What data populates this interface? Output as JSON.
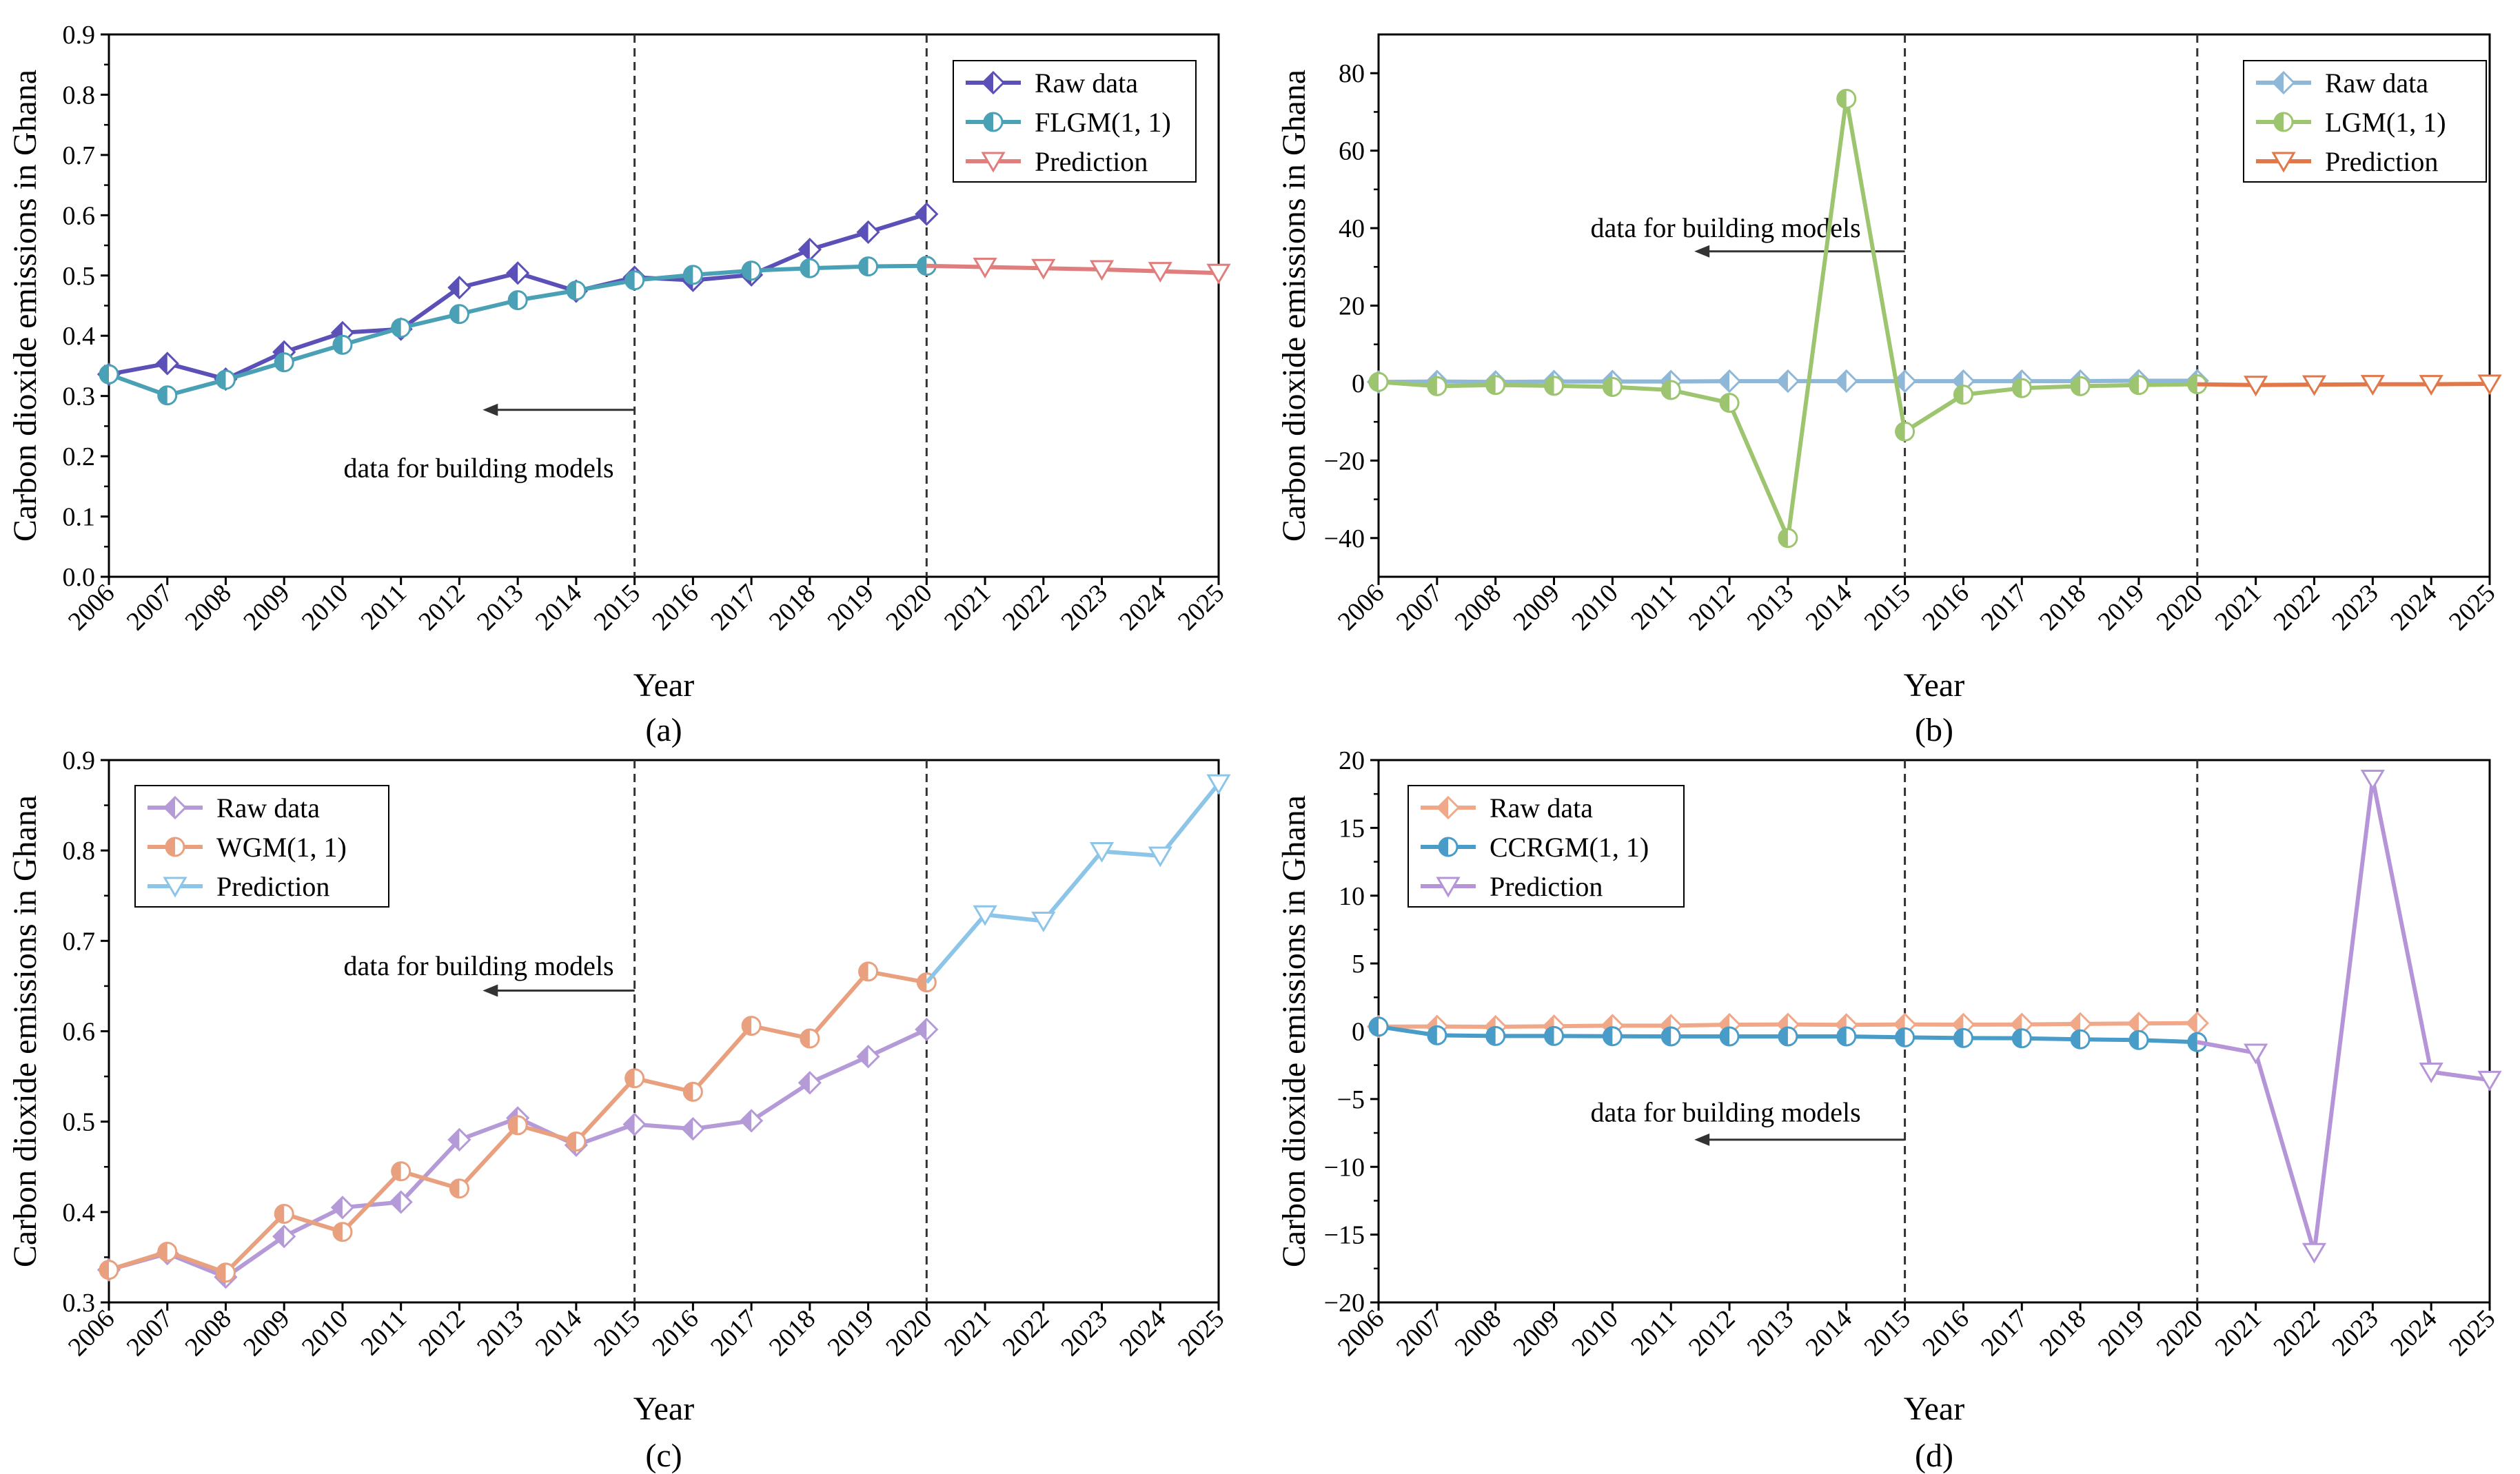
{
  "figure": {
    "panels_count": 4
  },
  "chart_data": [
    {
      "id": "a",
      "type": "line",
      "caption": "(a)",
      "xlabel": "Year",
      "ylabel": "Carbon dioxide emissions in Ghana",
      "xlim": [
        2006,
        2025
      ],
      "ylim": [
        0,
        0.9
      ],
      "x_ticks": [
        2006,
        2007,
        2008,
        2009,
        2010,
        2011,
        2012,
        2013,
        2014,
        2015,
        2016,
        2017,
        2018,
        2019,
        2020,
        2021,
        2022,
        2023,
        2024,
        2025
      ],
      "y_ticks": [
        0.0,
        0.1,
        0.2,
        0.3,
        0.4,
        0.5,
        0.6,
        0.7,
        0.8,
        0.9
      ],
      "y_tick_labels": [
        "0.0",
        "0.1",
        "0.2",
        "0.3",
        "0.4",
        "0.5",
        "0.6",
        "0.7",
        "0.8",
        "0.9"
      ],
      "vlines": [
        2015,
        2020
      ],
      "annotation": {
        "text": "data for building models",
        "arrow_from_x": 2015,
        "arrow_to_x": 2012.4,
        "arrow_y": 0.277,
        "text_y": 0.18,
        "text_x_end": 2015
      },
      "legend": {
        "position": "top-right"
      },
      "series": [
        {
          "name": "Raw data",
          "color": "#5b50b7",
          "marker": "diamond",
          "x": [
            2006,
            2007,
            2008,
            2009,
            2010,
            2011,
            2012,
            2013,
            2014,
            2015,
            2016,
            2017,
            2018,
            2019,
            2020
          ],
          "values": [
            0.336,
            0.354,
            0.328,
            0.373,
            0.405,
            0.411,
            0.48,
            0.504,
            0.474,
            0.497,
            0.492,
            0.501,
            0.543,
            0.572,
            0.602
          ]
        },
        {
          "name": "FLGM(1, 1)",
          "color": "#4aa1b6",
          "marker": "circle",
          "x": [
            2006,
            2007,
            2008,
            2009,
            2010,
            2011,
            2012,
            2013,
            2014,
            2015,
            2016,
            2017,
            2018,
            2019,
            2020
          ],
          "values": [
            0.336,
            0.301,
            0.327,
            0.356,
            0.385,
            0.413,
            0.436,
            0.459,
            0.475,
            0.492,
            0.501,
            0.508,
            0.512,
            0.515,
            0.516
          ]
        },
        {
          "name": "Prediction",
          "color": "#e07e7e",
          "marker": "triangle-down",
          "x": [
            2020,
            2021,
            2022,
            2023,
            2024,
            2025
          ],
          "values": [
            0.516,
            0.514,
            0.512,
            0.51,
            0.507,
            0.504
          ]
        }
      ]
    },
    {
      "id": "b",
      "type": "line",
      "caption": "(b)",
      "xlabel": "Year",
      "ylabel": "Carbon dioxide emissions in Ghana",
      "xlim": [
        2006,
        2025
      ],
      "ylim": [
        -50,
        90
      ],
      "x_ticks": [
        2006,
        2007,
        2008,
        2009,
        2010,
        2011,
        2012,
        2013,
        2014,
        2015,
        2016,
        2017,
        2018,
        2019,
        2020,
        2021,
        2022,
        2023,
        2024,
        2025
      ],
      "y_ticks": [
        -40,
        -20,
        0,
        20,
        40,
        60,
        80
      ],
      "y_tick_labels": [
        "−40",
        "−20",
        "0",
        "20",
        "40",
        "60",
        "80"
      ],
      "vlines": [
        2015,
        2020
      ],
      "annotation": {
        "text": "data for building models",
        "arrow_from_x": 2015,
        "arrow_to_x": 2011.4,
        "arrow_y": 34,
        "text_y": 40,
        "text_x_end": 2014.6
      },
      "legend": {
        "position": "top-right"
      },
      "series": [
        {
          "name": "Raw data",
          "color": "#8fb8d8",
          "marker": "diamond",
          "x": [
            2006,
            2007,
            2008,
            2009,
            2010,
            2011,
            2012,
            2013,
            2014,
            2015,
            2016,
            2017,
            2018,
            2019,
            2020
          ],
          "values": [
            0.3,
            0.4,
            0.3,
            0.4,
            0.4,
            0.4,
            0.5,
            0.5,
            0.5,
            0.5,
            0.5,
            0.5,
            0.5,
            0.6,
            0.6
          ]
        },
        {
          "name": "LGM(1, 1)",
          "color": "#9dc46f",
          "marker": "circle",
          "x": [
            2006,
            2007,
            2008,
            2009,
            2010,
            2011,
            2012,
            2013,
            2014,
            2015,
            2016,
            2017,
            2018,
            2019,
            2020
          ],
          "values": [
            0.3,
            -0.8,
            -0.5,
            -0.7,
            -1.0,
            -1.8,
            -5.1,
            -40.0,
            73.4,
            -12.5,
            -3.0,
            -1.3,
            -0.8,
            -0.5,
            -0.3
          ]
        },
        {
          "name": "Prediction",
          "color": "#e0784a",
          "marker": "triangle-down",
          "x": [
            2020,
            2021,
            2022,
            2023,
            2024,
            2025
          ],
          "values": [
            -0.3,
            -0.5,
            -0.4,
            -0.3,
            -0.3,
            -0.2
          ]
        }
      ]
    },
    {
      "id": "c",
      "type": "line",
      "caption": "(c)",
      "xlabel": "Year",
      "ylabel": "Carbon dioxide emissions in Ghana",
      "xlim": [
        2006,
        2025
      ],
      "ylim": [
        0.3,
        0.9
      ],
      "x_ticks": [
        2006,
        2007,
        2008,
        2009,
        2010,
        2011,
        2012,
        2013,
        2014,
        2015,
        2016,
        2017,
        2018,
        2019,
        2020,
        2021,
        2022,
        2023,
        2024,
        2025
      ],
      "y_ticks": [
        0.3,
        0.4,
        0.5,
        0.6,
        0.7,
        0.8,
        0.9
      ],
      "y_tick_labels": [
        "0.3",
        "0.4",
        "0.5",
        "0.6",
        "0.7",
        "0.8",
        "0.9"
      ],
      "vlines": [
        2015,
        2020
      ],
      "annotation": {
        "text": "data for building models",
        "arrow_from_x": 2015,
        "arrow_to_x": 2012.4,
        "arrow_y": 0.645,
        "text_y": 0.672,
        "text_x_end": 2015
      },
      "legend": {
        "position": "top-left"
      },
      "series": [
        {
          "name": "Raw data",
          "color": "#b59ad8",
          "marker": "diamond",
          "x": [
            2006,
            2007,
            2008,
            2009,
            2010,
            2011,
            2012,
            2013,
            2014,
            2015,
            2016,
            2017,
            2018,
            2019,
            2020
          ],
          "values": [
            0.336,
            0.354,
            0.328,
            0.373,
            0.405,
            0.411,
            0.48,
            0.504,
            0.474,
            0.497,
            0.492,
            0.501,
            0.543,
            0.572,
            0.602
          ]
        },
        {
          "name": "WGM(1, 1)",
          "color": "#e9a07e",
          "marker": "circle",
          "x": [
            2006,
            2007,
            2008,
            2009,
            2010,
            2011,
            2012,
            2013,
            2014,
            2015,
            2016,
            2017,
            2018,
            2019,
            2020
          ],
          "values": [
            0.336,
            0.356,
            0.333,
            0.398,
            0.378,
            0.445,
            0.426,
            0.496,
            0.478,
            0.548,
            0.533,
            0.606,
            0.592,
            0.666,
            0.654
          ]
        },
        {
          "name": "Prediction",
          "color": "#8cc5e8",
          "marker": "triangle-down",
          "x": [
            2020,
            2021,
            2022,
            2023,
            2024,
            2025
          ],
          "values": [
            0.654,
            0.729,
            0.722,
            0.799,
            0.794,
            0.874
          ]
        }
      ]
    },
    {
      "id": "d",
      "type": "line",
      "caption": "(d)",
      "xlabel": "Year",
      "ylabel": "Carbon dioxide emissions in Ghana",
      "xlim": [
        2006,
        2025
      ],
      "ylim": [
        -20,
        20
      ],
      "x_ticks": [
        2006,
        2007,
        2008,
        2009,
        2010,
        2011,
        2012,
        2013,
        2014,
        2015,
        2016,
        2017,
        2018,
        2019,
        2020,
        2021,
        2022,
        2023,
        2024,
        2025
      ],
      "y_ticks": [
        -20,
        -15,
        -10,
        -5,
        0,
        5,
        10,
        15,
        20
      ],
      "y_tick_labels": [
        "−20",
        "−15",
        "−10",
        "−5",
        "0",
        "5",
        "10",
        "15",
        "20"
      ],
      "vlines": [
        2015,
        2020
      ],
      "annotation": {
        "text": "data for building models",
        "arrow_from_x": 2015,
        "arrow_to_x": 2011.4,
        "arrow_y": -8,
        "text_y": -6,
        "text_x_end": 2014.6
      },
      "legend": {
        "position": "top-left"
      },
      "series": [
        {
          "name": "Raw data",
          "color": "#f0a888",
          "marker": "diamond",
          "x": [
            2006,
            2007,
            2008,
            2009,
            2010,
            2011,
            2012,
            2013,
            2014,
            2015,
            2016,
            2017,
            2018,
            2019,
            2020
          ],
          "values": [
            0.34,
            0.35,
            0.33,
            0.37,
            0.41,
            0.41,
            0.48,
            0.5,
            0.47,
            0.5,
            0.49,
            0.5,
            0.54,
            0.57,
            0.6
          ]
        },
        {
          "name": "CCRGM(1, 1)",
          "color": "#4a9cc8",
          "marker": "circle",
          "x": [
            2006,
            2007,
            2008,
            2009,
            2010,
            2011,
            2012,
            2013,
            2014,
            2015,
            2016,
            2017,
            2018,
            2019,
            2020
          ],
          "values": [
            0.34,
            -0.3,
            -0.35,
            -0.35,
            -0.37,
            -0.38,
            -0.38,
            -0.38,
            -0.38,
            -0.45,
            -0.5,
            -0.52,
            -0.6,
            -0.65,
            -0.8
          ]
        },
        {
          "name": "Prediction",
          "color": "#b594d8",
          "marker": "triangle-down",
          "x": [
            2020,
            2021,
            2022,
            2023,
            2024,
            2025
          ],
          "values": [
            -0.8,
            -1.6,
            -16.3,
            18.6,
            -3.0,
            -3.6
          ]
        }
      ]
    }
  ]
}
